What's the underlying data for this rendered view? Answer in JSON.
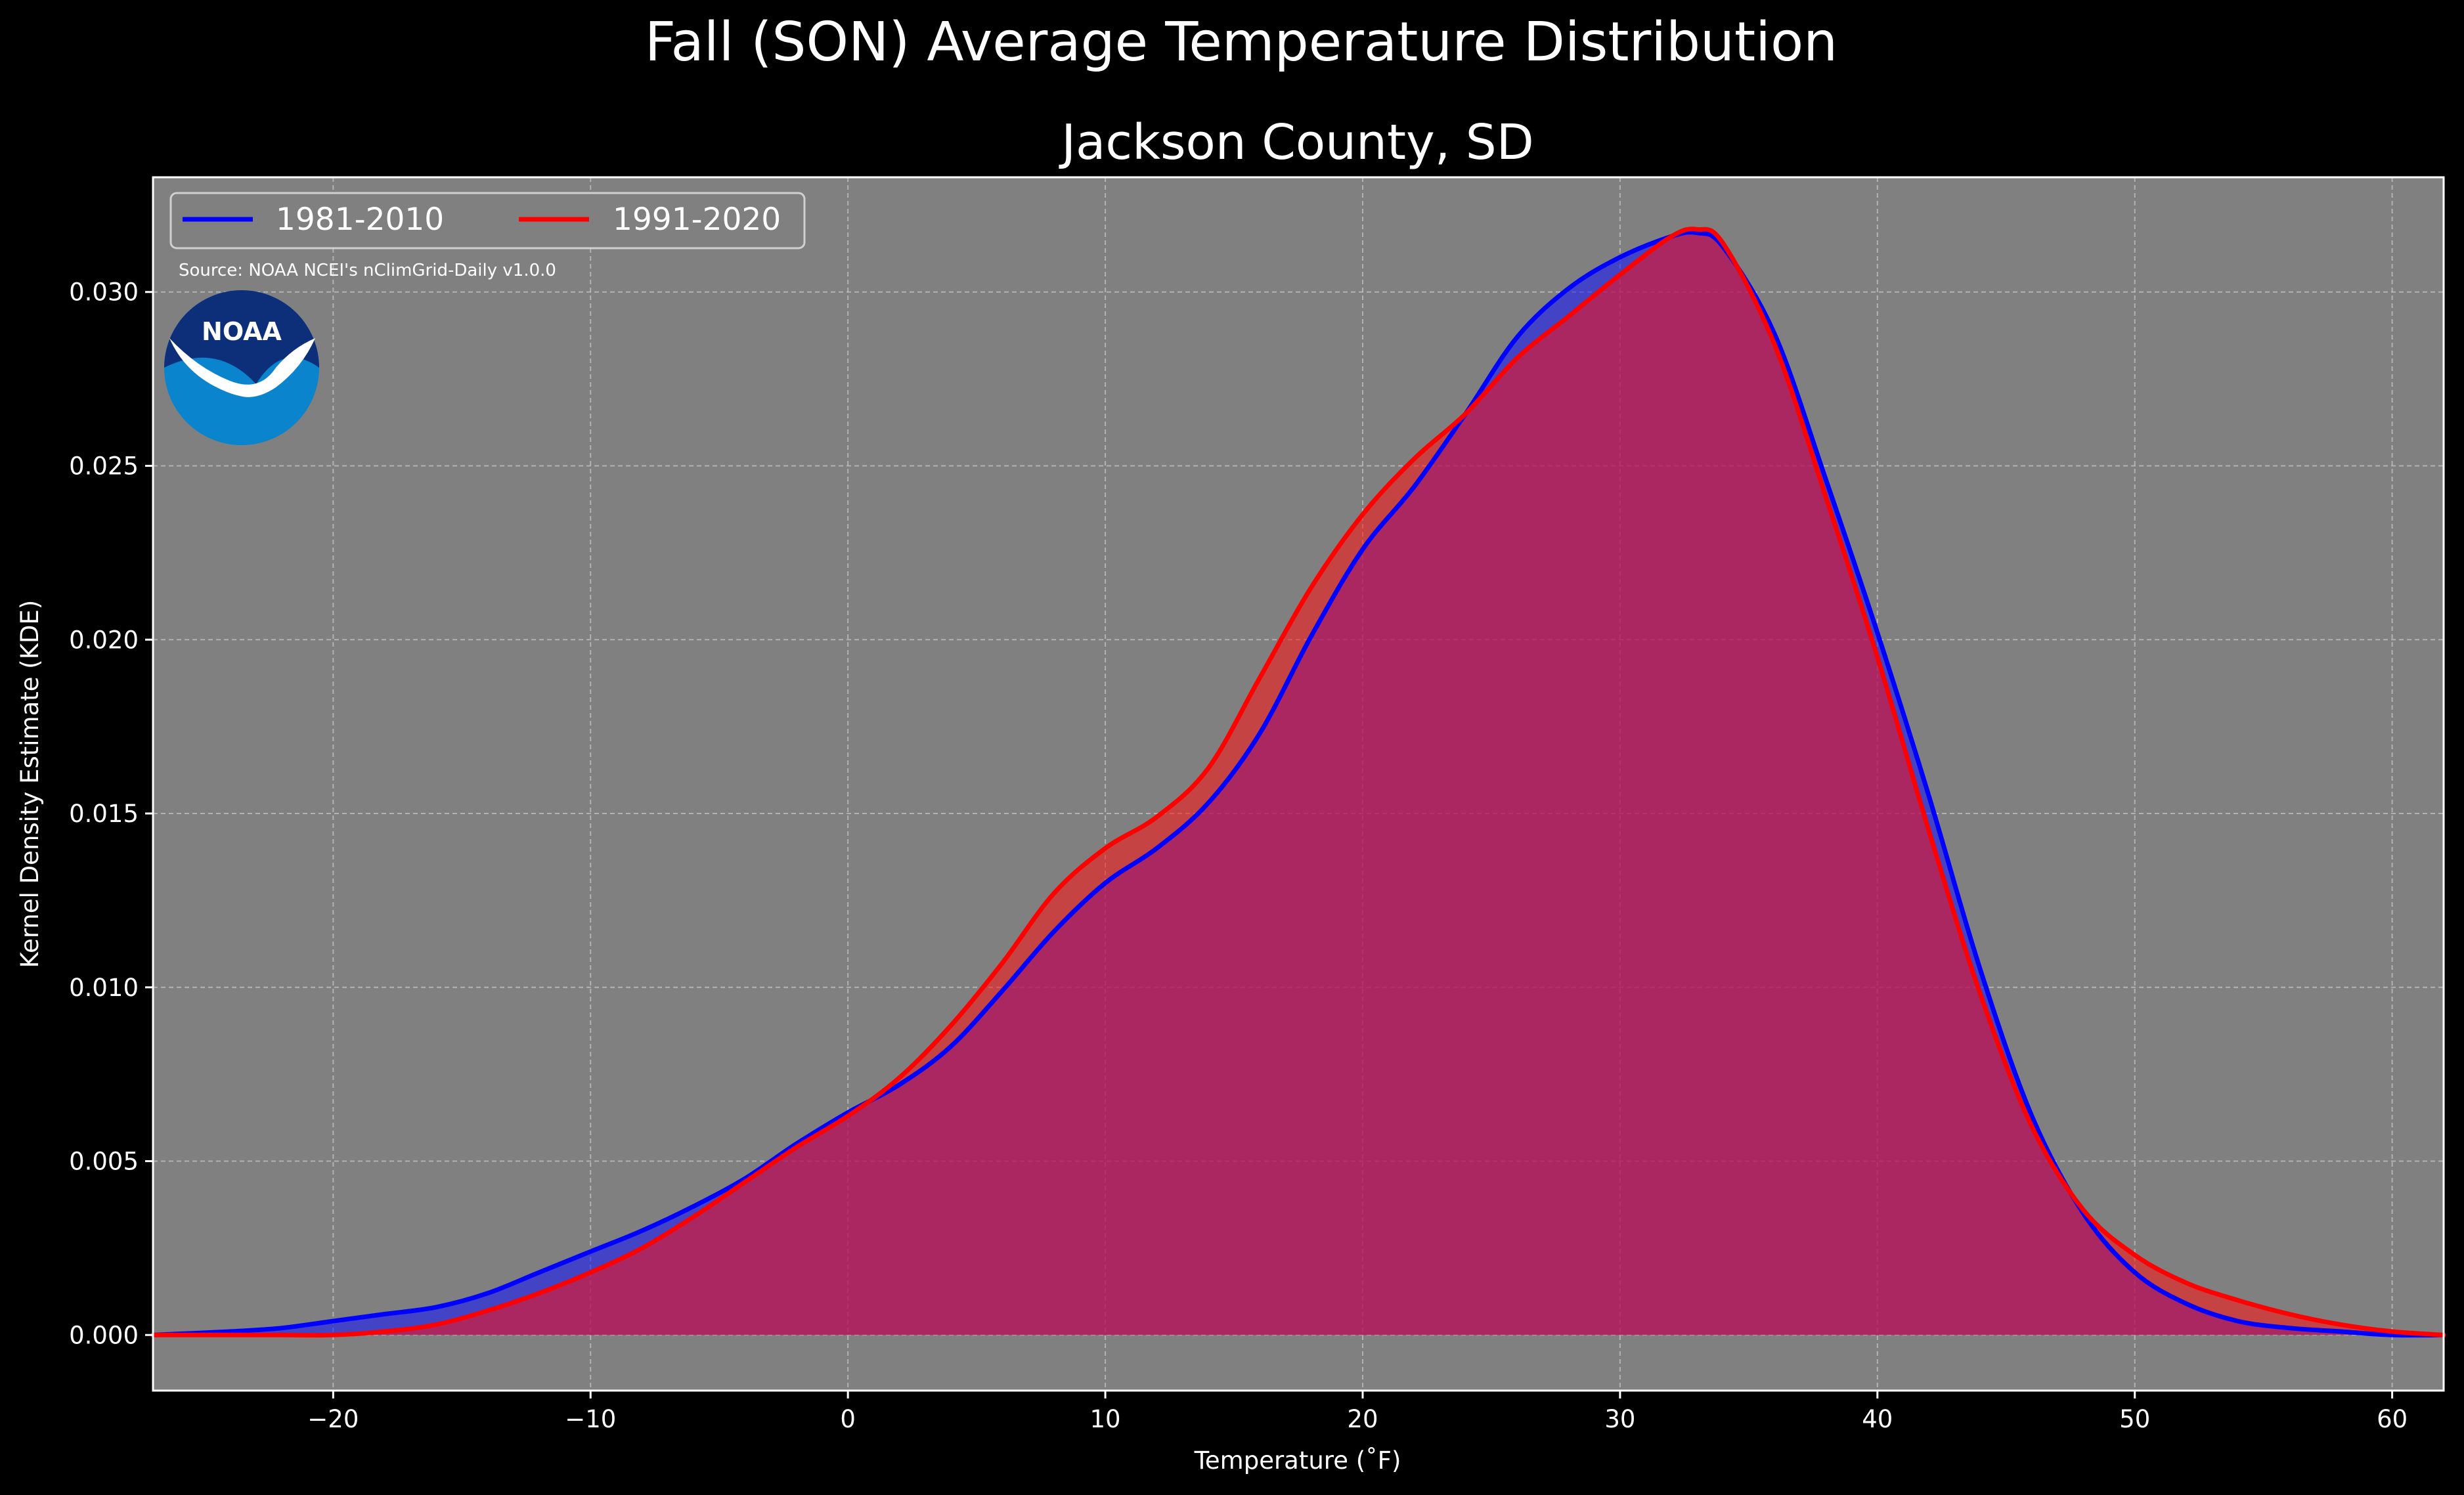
{
  "chart_data": {
    "type": "area",
    "title": "Fall (SON) Average Temperature Distribution",
    "subtitle": "Jackson County, SD",
    "xlabel": "Temperature (˚F)",
    "ylabel": "Kernel Density Estimate (KDE)",
    "source": "Source: NOAA NCEI's nClimGrid-Daily v1.0.0",
    "logo_text": "NOAA",
    "xlim": [
      -27,
      62
    ],
    "ylim": [
      -0.0016,
      0.0333
    ],
    "xticks": [
      -20,
      -10,
      0,
      10,
      20,
      30,
      40,
      50,
      60
    ],
    "xtick_labels": [
      "−20",
      "−10",
      "0",
      "10",
      "20",
      "30",
      "40",
      "50",
      "60"
    ],
    "yticks": [
      0.0,
      0.005,
      0.01,
      0.015,
      0.02,
      0.025,
      0.03
    ],
    "ytick_labels": [
      "0.000",
      "0.005",
      "0.010",
      "0.015",
      "0.020",
      "0.025",
      "0.030"
    ],
    "grid": true,
    "legend": "top-left",
    "colors": {
      "background": "#000000",
      "plot_background": "#808080",
      "series1_line": "#0000ff",
      "series1_fill": "#1010ff",
      "series2_line": "#ff0000",
      "series2_fill": "#ff1010"
    },
    "series": [
      {
        "name": "1981-2010",
        "color": "#0000ff",
        "x": [
          -27,
          -24,
          -22,
          -20,
          -18,
          -16,
          -14,
          -12,
          -10,
          -8,
          -6,
          -4,
          -2,
          0,
          2,
          4,
          6,
          8,
          10,
          12,
          14,
          16,
          18,
          20,
          22,
          24,
          26,
          28,
          30,
          32,
          33,
          34,
          36,
          38,
          40,
          42,
          44,
          46,
          48,
          50,
          52,
          54,
          56,
          58,
          60,
          62
        ],
        "y": [
          0.0,
          0.0001,
          0.0002,
          0.0004,
          0.0006,
          0.0008,
          0.0012,
          0.0018,
          0.0024,
          0.003,
          0.0037,
          0.0045,
          0.0055,
          0.0064,
          0.0072,
          0.0083,
          0.0099,
          0.0116,
          0.013,
          0.014,
          0.0153,
          0.0173,
          0.0201,
          0.0226,
          0.0244,
          0.0265,
          0.0287,
          0.0301,
          0.031,
          0.0316,
          0.0317,
          0.0313,
          0.0288,
          0.0246,
          0.0202,
          0.0155,
          0.0105,
          0.0063,
          0.0035,
          0.0018,
          0.0009,
          0.0004,
          0.0002,
          0.0001,
          0.0,
          0.0
        ]
      },
      {
        "name": "1991-2020",
        "color": "#ff0000",
        "x": [
          -27,
          -24,
          -22,
          -20,
          -18,
          -16,
          -14,
          -12,
          -10,
          -8,
          -6,
          -4,
          -2,
          0,
          2,
          4,
          6,
          8,
          10,
          12,
          14,
          16,
          18,
          20,
          22,
          24,
          26,
          28,
          30,
          32,
          33,
          34,
          36,
          38,
          40,
          42,
          44,
          46,
          48,
          50,
          52,
          54,
          56,
          58,
          60,
          62
        ],
        "y": [
          0.0,
          0.0,
          0.0,
          0.0,
          0.0001,
          0.0003,
          0.0007,
          0.0012,
          0.0018,
          0.0025,
          0.0034,
          0.0044,
          0.0054,
          0.0063,
          0.0074,
          0.0089,
          0.0107,
          0.0127,
          0.014,
          0.0149,
          0.0163,
          0.0189,
          0.0215,
          0.0236,
          0.0252,
          0.0265,
          0.0281,
          0.0293,
          0.0305,
          0.0316,
          0.0318,
          0.0314,
          0.0285,
          0.0241,
          0.0195,
          0.0145,
          0.0098,
          0.006,
          0.0036,
          0.0023,
          0.0015,
          0.001,
          0.0006,
          0.0003,
          0.0001,
          0.0
        ]
      }
    ]
  }
}
